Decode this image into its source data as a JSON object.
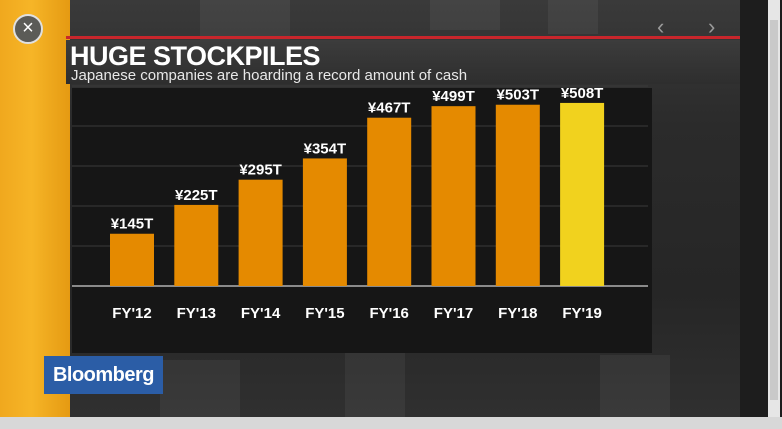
{
  "video": {
    "close_icon": "×",
    "prev_icon": "‹",
    "next_icon": "›",
    "brand": "Bloomberg"
  },
  "colors": {
    "bar": "#e58a00",
    "bar_highlight": "#f1d21e",
    "label": "#ffffff",
    "accent_red": "#c8262c",
    "stripe": "#f6b527",
    "logo_bg": "#2b5da6"
  },
  "chart_data": {
    "type": "bar",
    "title": "HUGE STOCKPILES",
    "subtitle": "Japanese companies are hoarding a record amount of cash",
    "categories": [
      "FY'12",
      "FY'13",
      "FY'14",
      "FY'15",
      "FY'16",
      "FY'17",
      "FY'18",
      "FY'19"
    ],
    "values": [
      145,
      225,
      295,
      354,
      467,
      499,
      503,
      508
    ],
    "value_labels": [
      "¥145T",
      "¥225T",
      "¥295T",
      "¥354T",
      "¥467T",
      "¥499T",
      "¥503T",
      "¥508T"
    ],
    "highlight_index": 7,
    "ylim": [
      0,
      600
    ],
    "grid": true,
    "xlabel": "",
    "ylabel": ""
  }
}
